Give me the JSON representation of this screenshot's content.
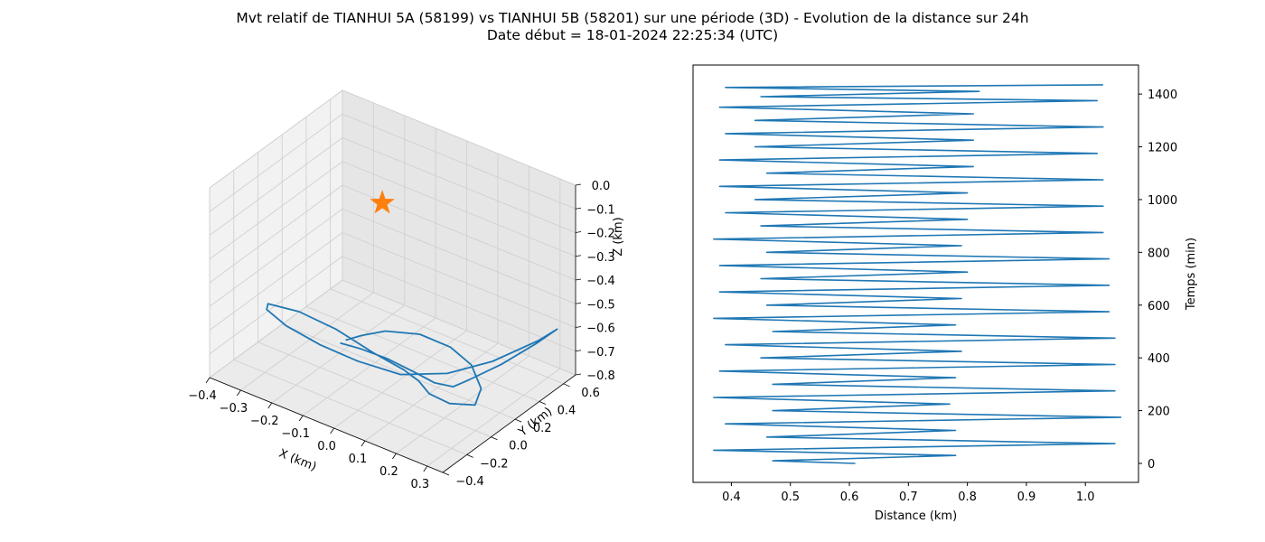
{
  "figure": {
    "title_line1": "Mvt relatif de TIANHUI 5A (58199) vs TIANHUI 5B (58201) sur une période (3D) - Evolution de la distance sur 24h",
    "title_line2": "Date début = 18-01-2024 22:25:34 (UTC)"
  },
  "colors": {
    "series": "#1f77b4",
    "marker": "#ff7f0e",
    "pane_x": "#f2f2f2",
    "pane_y": "#e6e6e6",
    "pane_z": "#ebebeb",
    "grid": "#d0d0d0"
  },
  "chart_data": [
    {
      "type": "line3d",
      "xlabel": "X (km)",
      "ylabel": "Y (km)",
      "zlabel": "Z (km)",
      "xlim": [
        -0.4,
        0.35
      ],
      "ylim": [
        -0.4,
        0.7
      ],
      "zlim": [
        -0.8,
        0.0
      ],
      "xticks": [
        "−0.4",
        "−0.3",
        "−0.2",
        "−0.1",
        "0.0",
        "0.1",
        "0.2",
        "0.3"
      ],
      "yticks": [
        "−0.4",
        "−0.2",
        "0.0",
        "0.2",
        "0.4",
        "0.6"
      ],
      "zticks": [
        "0.0",
        "−0.1",
        "−0.2",
        "−0.3",
        "−0.4",
        "−0.5",
        "−0.6",
        "−0.7",
        "−0.8"
      ],
      "grid": true,
      "marker": {
        "shape": "star",
        "x": 0.0,
        "y": 0.0,
        "z": 0.0
      },
      "series": [
        {
          "points": [
            [
              0.02,
              -0.4,
              -0.43
            ],
            [
              0.06,
              -0.33,
              -0.46
            ],
            [
              0.1,
              -0.22,
              -0.52
            ],
            [
              0.14,
              -0.1,
              -0.6
            ],
            [
              0.16,
              0.02,
              -0.68
            ],
            [
              0.17,
              0.15,
              -0.74
            ],
            [
              0.17,
              0.28,
              -0.76
            ],
            [
              0.22,
              0.42,
              -0.72
            ],
            [
              0.28,
              0.55,
              -0.65
            ],
            [
              0.31,
              0.65,
              -0.61
            ],
            [
              0.27,
              0.6,
              -0.66
            ],
            [
              0.18,
              0.45,
              -0.74
            ],
            [
              0.1,
              0.28,
              -0.77
            ],
            [
              0.02,
              0.1,
              -0.75
            ],
            [
              -0.06,
              -0.05,
              -0.68
            ],
            [
              -0.13,
              -0.18,
              -0.6
            ],
            [
              -0.2,
              -0.28,
              -0.52
            ],
            [
              -0.24,
              -0.34,
              -0.45
            ],
            [
              -0.22,
              -0.38,
              -0.4
            ],
            [
              -0.12,
              -0.38,
              -0.38
            ],
            [
              -0.02,
              -0.33,
              -0.42
            ],
            [
              0.06,
              -0.22,
              -0.52
            ],
            [
              0.1,
              -0.08,
              -0.62
            ],
            [
              0.11,
              0.02,
              -0.7
            ],
            [
              0.12,
              0.08,
              -0.77
            ],
            [
              0.17,
              0.12,
              -0.8
            ],
            [
              0.24,
              0.15,
              -0.78
            ],
            [
              0.26,
              0.15,
              -0.7
            ],
            [
              0.24,
              0.12,
              -0.6
            ],
            [
              0.2,
              0.05,
              -0.52
            ],
            [
              0.14,
              -0.05,
              -0.46
            ],
            [
              0.08,
              -0.18,
              -0.43
            ],
            [
              0.05,
              -0.3,
              -0.42
            ],
            [
              0.03,
              -0.38,
              -0.42
            ]
          ]
        }
      ]
    },
    {
      "type": "line",
      "xlabel": "Distance (km)",
      "ylabel": "Temps (min)",
      "xlim": [
        0.335,
        1.09
      ],
      "ylim": [
        -72,
        1510
      ],
      "xticks": [
        0.4,
        0.5,
        0.6,
        0.7,
        0.8,
        0.9,
        1.0
      ],
      "yticks": [
        0,
        200,
        400,
        600,
        800,
        1000,
        1200,
        1400
      ],
      "grid": false,
      "series": [
        {
          "x": [
            0.61,
            0.47,
            0.78,
            0.37,
            1.05,
            0.46,
            0.78,
            0.39,
            1.06,
            0.47,
            0.77,
            0.37,
            1.05,
            0.47,
            0.78,
            0.38,
            1.05,
            0.45,
            0.79,
            0.39,
            1.05,
            0.47,
            0.78,
            0.37,
            1.04,
            0.46,
            0.79,
            0.38,
            1.04,
            0.45,
            0.8,
            0.38,
            1.04,
            0.46,
            0.79,
            0.37,
            1.03,
            0.45,
            0.8,
            0.39,
            1.03,
            0.44,
            0.8,
            0.38,
            1.03,
            0.46,
            0.81,
            0.38,
            1.02,
            0.44,
            0.81,
            0.39,
            1.03,
            0.44,
            0.81,
            0.38,
            1.02,
            0.45,
            0.82,
            0.39,
            1.03
          ],
          "y": [
            0,
            10,
            30,
            50,
            75,
            100,
            125,
            150,
            175,
            200,
            225,
            250,
            275,
            300,
            325,
            350,
            375,
            400,
            425,
            450,
            475,
            500,
            525,
            550,
            575,
            600,
            625,
            650,
            675,
            700,
            725,
            750,
            775,
            800,
            825,
            850,
            875,
            900,
            925,
            950,
            975,
            1000,
            1025,
            1050,
            1075,
            1100,
            1125,
            1150,
            1175,
            1200,
            1225,
            1250,
            1275,
            1300,
            1325,
            1350,
            1375,
            1390,
            1410,
            1425,
            1435
          ]
        }
      ]
    }
  ]
}
